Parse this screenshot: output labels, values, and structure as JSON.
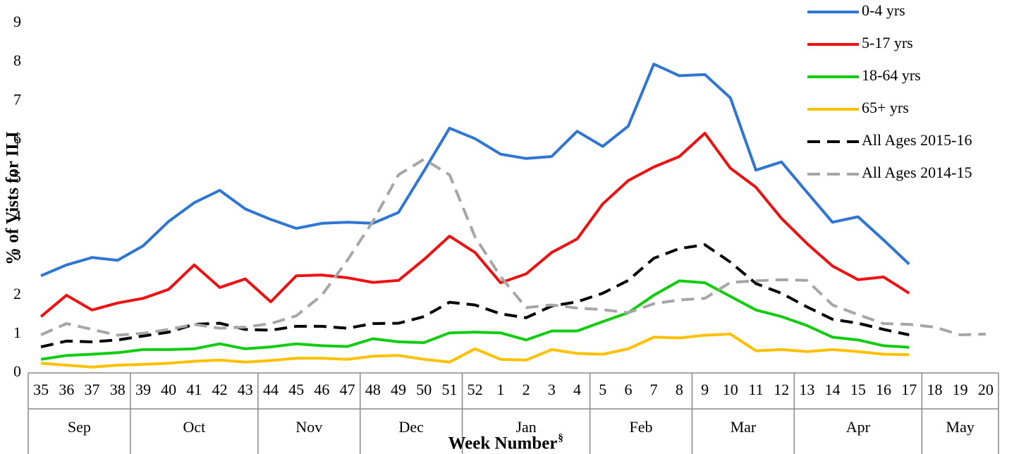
{
  "chart_data": {
    "type": "line",
    "y_label": "% of Vists for ILI",
    "x_label": "Week Number",
    "x_label_mark": "§",
    "categories": [
      "35",
      "36",
      "37",
      "38",
      "39",
      "40",
      "41",
      "42",
      "43",
      "44",
      "45",
      "46",
      "47",
      "48",
      "49",
      "50",
      "51",
      "52",
      "1",
      "2",
      "3",
      "4",
      "5",
      "6",
      "7",
      "8",
      "9",
      "10",
      "11",
      "12",
      "13",
      "14",
      "15",
      "16",
      "17",
      "18",
      "19",
      "20"
    ],
    "months": [
      "Sep",
      null,
      null,
      null,
      "Oct",
      null,
      null,
      null,
      null,
      "Nov",
      null,
      null,
      null,
      "Dec",
      null,
      null,
      null,
      "Jan",
      null,
      null,
      null,
      null,
      "Feb",
      null,
      null,
      null,
      "Mar",
      null,
      null,
      null,
      "Apr",
      null,
      null,
      null,
      null,
      "May",
      null,
      null
    ],
    "ylim": [
      0,
      9
    ],
    "yticks": [
      0,
      1,
      2,
      3,
      4,
      5,
      6,
      7,
      8,
      9
    ],
    "series": [
      {
        "name": "0-4 yrs",
        "color": "#2e75d4",
        "style": "solid",
        "values": [
          2.5,
          2.78,
          2.97,
          2.9,
          3.27,
          3.9,
          4.38,
          4.7,
          4.22,
          3.95,
          3.72,
          3.85,
          3.88,
          3.85,
          4.13,
          5.2,
          6.3,
          6.03,
          5.63,
          5.52,
          5.57,
          6.22,
          5.83,
          6.35,
          7.95,
          7.65,
          7.68,
          7.08,
          5.22,
          5.43,
          4.65,
          3.88,
          4.02,
          3.42,
          2.8,
          null,
          null,
          null
        ]
      },
      {
        "name": "5-17 yrs",
        "color": "#ee1111",
        "style": "solid",
        "values": [
          1.45,
          2.0,
          1.62,
          1.8,
          1.92,
          2.15,
          2.78,
          2.2,
          2.42,
          1.83,
          2.5,
          2.52,
          2.45,
          2.33,
          2.38,
          2.92,
          3.52,
          3.1,
          2.32,
          2.55,
          3.1,
          3.45,
          4.35,
          4.95,
          5.3,
          5.57,
          6.17,
          5.27,
          4.78,
          3.98,
          3.33,
          2.75,
          2.4,
          2.47,
          2.05,
          null,
          null,
          null
        ]
      },
      {
        "name": "18-64 yrs",
        "color": "#11cc11",
        "style": "solid",
        "values": [
          0.35,
          0.45,
          0.48,
          0.52,
          0.6,
          0.6,
          0.62,
          0.75,
          0.62,
          0.67,
          0.75,
          0.7,
          0.68,
          0.88,
          0.8,
          0.78,
          1.03,
          1.05,
          1.03,
          0.85,
          1.08,
          1.08,
          1.32,
          1.55,
          2.0,
          2.37,
          2.32,
          1.97,
          1.62,
          1.45,
          1.22,
          0.92,
          0.85,
          0.7,
          0.66,
          null,
          null,
          null
        ]
      },
      {
        "name": "65+ yrs",
        "color": "#ffc000",
        "style": "solid",
        "values": [
          0.25,
          0.2,
          0.15,
          0.2,
          0.22,
          0.25,
          0.3,
          0.33,
          0.28,
          0.32,
          0.38,
          0.38,
          0.35,
          0.43,
          0.45,
          0.35,
          0.28,
          0.62,
          0.35,
          0.33,
          0.6,
          0.5,
          0.48,
          0.62,
          0.92,
          0.9,
          0.97,
          1.0,
          0.57,
          0.6,
          0.55,
          0.6,
          0.55,
          0.48,
          0.47,
          null,
          null,
          null
        ]
      },
      {
        "name": "All Ages 2015-16",
        "color": "#000000",
        "style": "dashed",
        "values": [
          0.67,
          0.82,
          0.8,
          0.85,
          0.95,
          1.05,
          1.25,
          1.28,
          1.12,
          1.1,
          1.2,
          1.2,
          1.15,
          1.27,
          1.28,
          1.45,
          1.82,
          1.75,
          1.52,
          1.42,
          1.72,
          1.83,
          2.05,
          2.38,
          2.95,
          3.2,
          3.3,
          2.85,
          2.3,
          2.05,
          1.7,
          1.38,
          1.28,
          1.12,
          0.98,
          null,
          null,
          null
        ]
      },
      {
        "name": "All Ages 2014-15",
        "color": "#a6a6a6",
        "style": "dashed",
        "values": [
          0.98,
          1.27,
          1.12,
          0.97,
          1.02,
          1.12,
          1.25,
          1.15,
          1.18,
          1.27,
          1.47,
          2.0,
          2.9,
          3.9,
          5.1,
          5.5,
          5.1,
          3.5,
          2.48,
          1.68,
          1.75,
          1.67,
          1.63,
          1.55,
          1.78,
          1.88,
          1.92,
          2.33,
          2.37,
          2.4,
          2.38,
          1.75,
          1.5,
          1.27,
          1.25,
          1.18,
          0.98,
          1.0
        ]
      }
    ]
  }
}
